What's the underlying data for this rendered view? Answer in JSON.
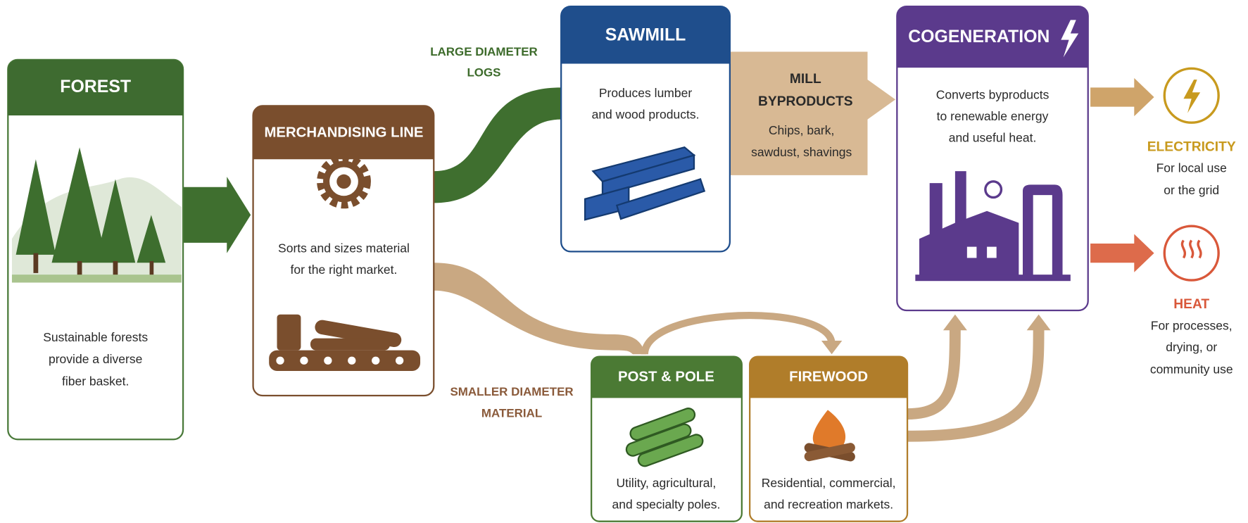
{
  "nodes": [
    {
      "title": "FOREST",
      "description": [
        "Sustainable forests",
        "provide a diverse",
        "fiber basket."
      ]
    },
    {
      "title": "MERCHANDISING LINE",
      "description": [
        "Sorts and sizes material",
        "for the right market."
      ]
    },
    {
      "title": "SAWMILL",
      "description": [
        "Produces lumber",
        "and wood products."
      ]
    },
    {
      "title": "COGENERATION",
      "description": [
        "Converts byproducts",
        "to renewable energy",
        "and useful heat."
      ]
    },
    {
      "title": "POST & POLE",
      "description": [
        "Utility, agricultural,",
        "and specialty poles."
      ]
    },
    {
      "title": "FIREWOOD",
      "description": [
        "Residential, commercial,",
        "and recreation markets."
      ]
    }
  ],
  "flows": [
    {
      "label": [
        "LARGE DIAMETER",
        "LOGS"
      ]
    },
    {
      "label": [
        "SMALLER DIAMETER",
        "MATERIAL"
      ]
    },
    {
      "label": [
        "MILL",
        "BYPRODUCTS"
      ],
      "description": [
        "Chips, bark,",
        "sawdust, shavings"
      ]
    }
  ],
  "outputs": [
    {
      "title": "ELECTRICITY",
      "description": [
        "For local use",
        "or the grid"
      ]
    },
    {
      "title": "HEAT",
      "description": [
        "For processes,",
        "drying, or",
        "community use"
      ]
    }
  ]
}
